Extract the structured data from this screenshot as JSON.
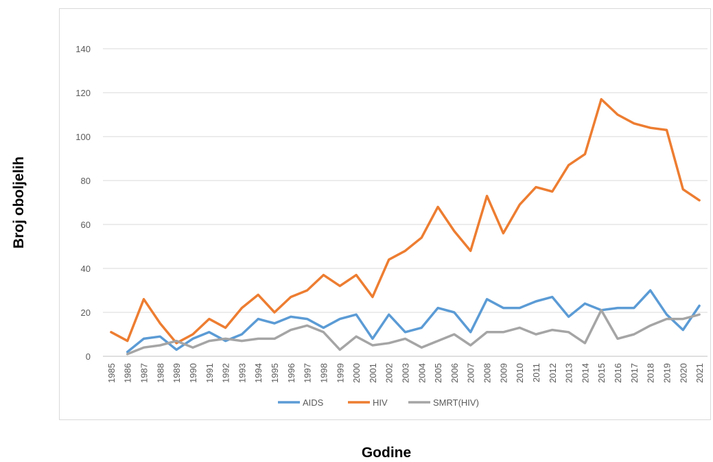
{
  "chart_data": {
    "type": "line",
    "title": "",
    "xlabel": "Godine",
    "ylabel": "Broj oboljelih",
    "ylim": [
      0,
      150
    ],
    "yticks": [
      0,
      20,
      40,
      60,
      80,
      100,
      120,
      140
    ],
    "grid": true,
    "legend_position": "bottom",
    "categories": [
      "1985",
      "1986",
      "1987",
      "1988",
      "1989",
      "1990",
      "1991",
      "1992",
      "1993",
      "1994",
      "1995",
      "1996",
      "1997",
      "1998",
      "1999",
      "2000",
      "2001",
      "2002",
      "2003",
      "2004",
      "2005",
      "2006",
      "2007",
      "2008",
      "2009",
      "2010",
      "2011",
      "2012",
      "2013",
      "2014",
      "2015",
      "2016",
      "2017",
      "2018",
      "2019",
      "2020",
      "2021"
    ],
    "series": [
      {
        "name": "AIDS",
        "color": "#5b9bd5",
        "values": [
          null,
          2,
          8,
          9,
          3,
          8,
          11,
          7,
          10,
          17,
          15,
          18,
          17,
          13,
          17,
          19,
          8,
          19,
          11,
          13,
          22,
          20,
          11,
          26,
          22,
          22,
          25,
          27,
          18,
          24,
          21,
          22,
          22,
          30,
          19,
          12,
          23
        ]
      },
      {
        "name": "HIV",
        "color": "#ed7d31",
        "values": [
          11,
          7,
          26,
          15,
          6,
          10,
          17,
          13,
          22,
          28,
          20,
          27,
          30,
          37,
          32,
          37,
          27,
          44,
          48,
          54,
          68,
          57,
          48,
          73,
          56,
          69,
          77,
          75,
          87,
          92,
          117,
          110,
          106,
          104,
          103,
          76,
          71
        ]
      },
      {
        "name": "SMRT(HIV)",
        "color": "#a5a5a5",
        "values": [
          null,
          1,
          4,
          5,
          7,
          4,
          7,
          8,
          7,
          8,
          8,
          12,
          14,
          11,
          3,
          9,
          5,
          6,
          8,
          4,
          7,
          10,
          5,
          11,
          11,
          13,
          10,
          12,
          11,
          6,
          21,
          8,
          10,
          14,
          17,
          17,
          19
        ]
      }
    ]
  }
}
